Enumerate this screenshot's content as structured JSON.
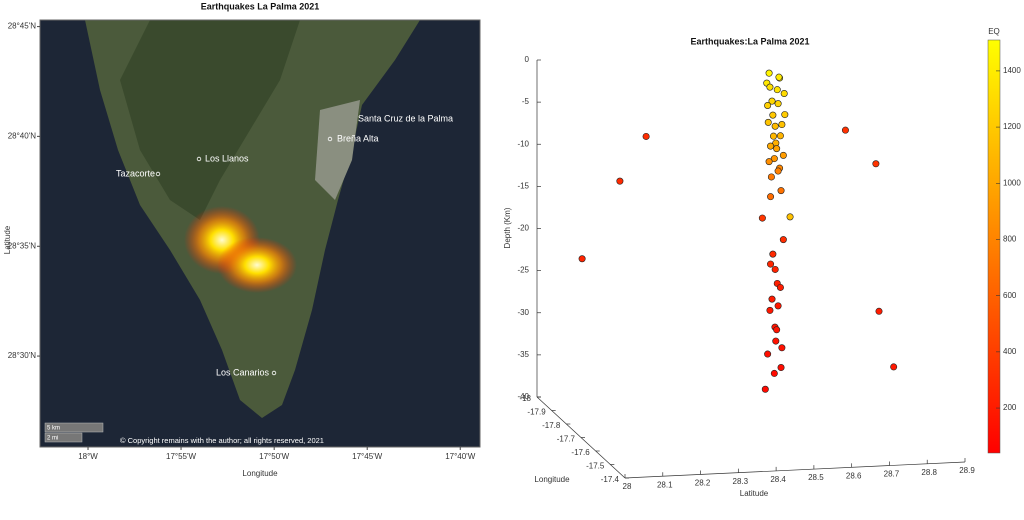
{
  "chart_data": [
    {
      "type": "map",
      "title": "Earthquakes La Palma 2021",
      "xlabel": "Longitude",
      "ylabel": "Latitude",
      "xlim": [
        -18.043,
        -17.649
      ],
      "ylim": [
        28.431,
        28.755
      ],
      "xticks": [
        {
          "value": -18,
          "label": "18°W"
        },
        {
          "value": -17.9167,
          "label": "17°55'W"
        },
        {
          "value": -17.8333,
          "label": "17°50'W"
        },
        {
          "value": -17.75,
          "label": "17°45'W"
        },
        {
          "value": -17.6667,
          "label": "17°40'W"
        }
      ],
      "yticks": [
        {
          "value": 28.5,
          "label": "28°30'N"
        },
        {
          "value": 28.5833,
          "label": "28°35'N"
        },
        {
          "value": 28.6667,
          "label": "28°40'N"
        },
        {
          "value": 28.75,
          "label": "28°45'N"
        }
      ],
      "places": [
        "Santa Cruz de la Palma",
        "Breña Alta",
        "Los Llanos",
        "Tazacorte",
        "Los Canarios"
      ],
      "scale_labels": [
        "5 km",
        "2 mi"
      ],
      "copyright": "© Copyright remains with the author; all rights reserved, 2021"
    },
    {
      "type": "scatter3d",
      "title": "Earthquakes:La Palma 2021",
      "xlabel": "Longitude",
      "ylabel": "Latitude",
      "zlabel": "Depth (Km)",
      "xlim": [
        -18,
        -17.4
      ],
      "ylim": [
        28,
        28.9
      ],
      "zlim": [
        -40,
        0
      ],
      "xticks": [
        -18,
        -17.9,
        -17.8,
        -17.7,
        -17.6,
        -17.5,
        -17.4
      ],
      "yticks": [
        28,
        28.1,
        28.2,
        28.3,
        28.4,
        28.5,
        28.6,
        28.7,
        28.8,
        28.9
      ],
      "zticks": [
        0,
        -5,
        -10,
        -15,
        -20,
        -25,
        -30,
        -35,
        -40
      ],
      "colorbar_label": "EQ",
      "clim": [
        40,
        1510
      ],
      "cticks": [
        200,
        400,
        600,
        800,
        1000,
        1200,
        1400
      ],
      "x": [
        -17.86,
        -17.84,
        -17.87,
        -17.85,
        -17.83,
        -17.88,
        -17.86,
        -17.84,
        -17.85,
        -17.87,
        -17.83,
        -17.86,
        -17.84,
        -17.85,
        -17.87,
        -17.83,
        -17.86,
        -17.84,
        -17.85,
        -17.86,
        -17.84,
        -17.85,
        -17.86,
        -17.84,
        -17.85,
        -17.87,
        -17.83,
        -17.85,
        -17.82,
        -17.88,
        -17.84,
        -17.86,
        -17.85,
        -17.87,
        -17.83,
        -17.86,
        -17.84,
        -17.85,
        -17.88,
        -17.82,
        -17.86,
        -17.84,
        -17.85,
        -17.87,
        -17.83,
        -17.85,
        -17.86,
        -17.95,
        -17.95,
        -17.9,
        -17.7,
        -17.75,
        -17.6,
        -17.5
      ],
      "y": [
        28.56,
        28.58,
        28.59,
        28.55,
        28.57,
        28.57,
        28.6,
        28.56,
        28.58,
        28.56,
        28.59,
        28.57,
        28.55,
        28.59,
        28.58,
        28.56,
        28.59,
        28.57,
        28.56,
        28.58,
        28.59,
        28.57,
        28.56,
        28.58,
        28.58,
        28.57,
        28.58,
        28.56,
        28.6,
        28.55,
        28.59,
        28.57,
        28.56,
        28.58,
        28.57,
        28.59,
        28.56,
        28.58,
        28.57,
        28.56,
        28.58,
        28.57,
        28.59,
        28.56,
        28.58,
        28.57,
        28.55,
        28.1,
        28.2,
        28.25,
        28.7,
        28.8,
        28.75,
        28.75
      ],
      "z": [
        -0.5,
        -0.8,
        -1.2,
        -1.5,
        -2,
        -2.5,
        -3,
        -3.5,
        -4,
        -4.5,
        -5,
        -5.5,
        -6,
        -6.5,
        -7,
        -7.5,
        -8,
        -8.5,
        -9,
        -9.5,
        -10,
        -10.5,
        -11,
        -11.5,
        -12,
        -13,
        -14,
        -15,
        -17,
        -18,
        -20,
        -22,
        -23,
        -24,
        -25,
        -26,
        -27,
        -28,
        -29,
        -30,
        -31,
        -32,
        -33,
        -34,
        -35,
        -36,
        -38,
        -23,
        -14,
        -8,
        -5,
        -10,
        -25,
        -30
      ],
      "c": [
        1450,
        1420,
        1390,
        1380,
        1350,
        1330,
        1300,
        1280,
        1260,
        1240,
        1210,
        1190,
        1170,
        1150,
        1120,
        1100,
        1080,
        1050,
        1020,
        980,
        940,
        900,
        860,
        820,
        780,
        740,
        700,
        660,
        1150,
        350,
        300,
        280,
        260,
        240,
        220,
        200,
        190,
        180,
        170,
        160,
        150,
        140,
        130,
        120,
        110,
        100,
        90,
        250,
        280,
        300,
        320,
        340,
        200,
        180
      ]
    }
  ]
}
